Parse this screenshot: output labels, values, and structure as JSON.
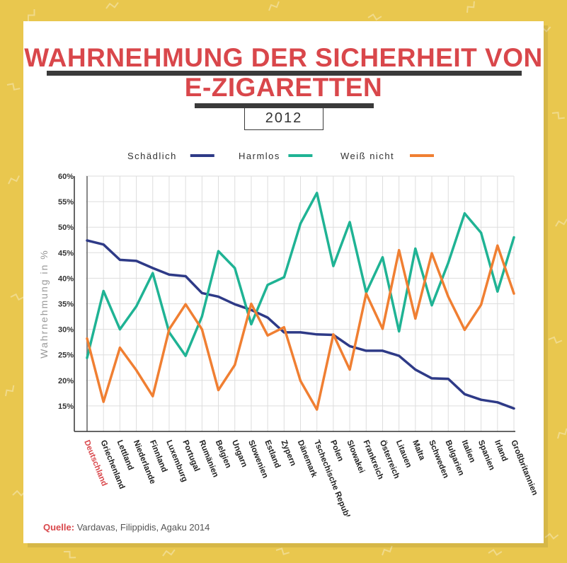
{
  "title": {
    "line1": "WAHRNEHMUNG DER SICHERHEIT VON",
    "line2": "E-ZIGARETTEN",
    "year": "2012"
  },
  "source": {
    "label": "Quelle:",
    "text": "Vardavas, Filippidis, Agaku 2014"
  },
  "colors": {
    "background": "#E9C74E",
    "title": "#D9474B",
    "schaedlich": "#2E3A87",
    "harmlos": "#1FB394",
    "weiss_nicht": "#F07F32",
    "highlight_country": "#D9474B"
  },
  "chart_data": {
    "type": "line",
    "ylabel": "Wahrnehmung in %",
    "xlabel": "",
    "ylim": [
      10,
      60
    ],
    "yticks": [
      15,
      20,
      25,
      30,
      35,
      40,
      45,
      50,
      55,
      60
    ],
    "ytick_labels": [
      "15%",
      "20%",
      "25%",
      "30%",
      "35%",
      "40%",
      "45%",
      "50%",
      "55%",
      "60%"
    ],
    "grid": true,
    "legend": "top",
    "highlight_category": "Deutschland",
    "categories": [
      "Deutschland",
      "Griechenland",
      "Lettland",
      "Niederlande",
      "Finnland",
      "Luxemburg",
      "Portugal",
      "Rumänien",
      "Belgien",
      "Ungarn",
      "Slowenien",
      "Estland",
      "Zypern",
      "Dänemark",
      "Tschechische Republik",
      "Polen",
      "Slowakei",
      "Frankreich",
      "Österreich",
      "Litauen",
      "Malta",
      "Schweden",
      "Bulgarien",
      "Italien",
      "Spanien",
      "Irland",
      "Großbritannien"
    ],
    "series": [
      {
        "name": "Schädlich",
        "key": "schaedlich",
        "values": [
          47.4,
          46.6,
          43.6,
          43.4,
          42.0,
          40.7,
          40.4,
          37.1,
          36.4,
          34.9,
          33.8,
          32.3,
          29.4,
          29.4,
          29.0,
          28.9,
          26.7,
          25.8,
          25.8,
          24.8,
          22.1,
          20.4,
          20.3,
          17.3,
          16.2,
          15.7,
          14.5
        ]
      },
      {
        "name": "Harmlos",
        "key": "harmlos",
        "values": [
          24.4,
          37.5,
          30.0,
          34.5,
          41.0,
          29.4,
          24.8,
          32.5,
          45.3,
          42.0,
          31.0,
          38.7,
          40.2,
          50.7,
          56.7,
          42.4,
          51.0,
          37.2,
          44.1,
          29.6,
          45.8,
          34.7,
          43.0,
          52.7,
          48.9,
          37.4,
          48.0
        ]
      },
      {
        "name": "Weiß nicht",
        "key": "weiss_nicht",
        "values": [
          28.2,
          15.8,
          26.4,
          22.0,
          16.9,
          30.0,
          34.9,
          30.0,
          18.1,
          23.0,
          35.0,
          28.8,
          30.4,
          19.9,
          14.3,
          29.0,
          22.1,
          37.0,
          30.1,
          45.5,
          32.1,
          44.9,
          36.4,
          29.9,
          34.8,
          46.4,
          37.0
        ]
      }
    ]
  }
}
